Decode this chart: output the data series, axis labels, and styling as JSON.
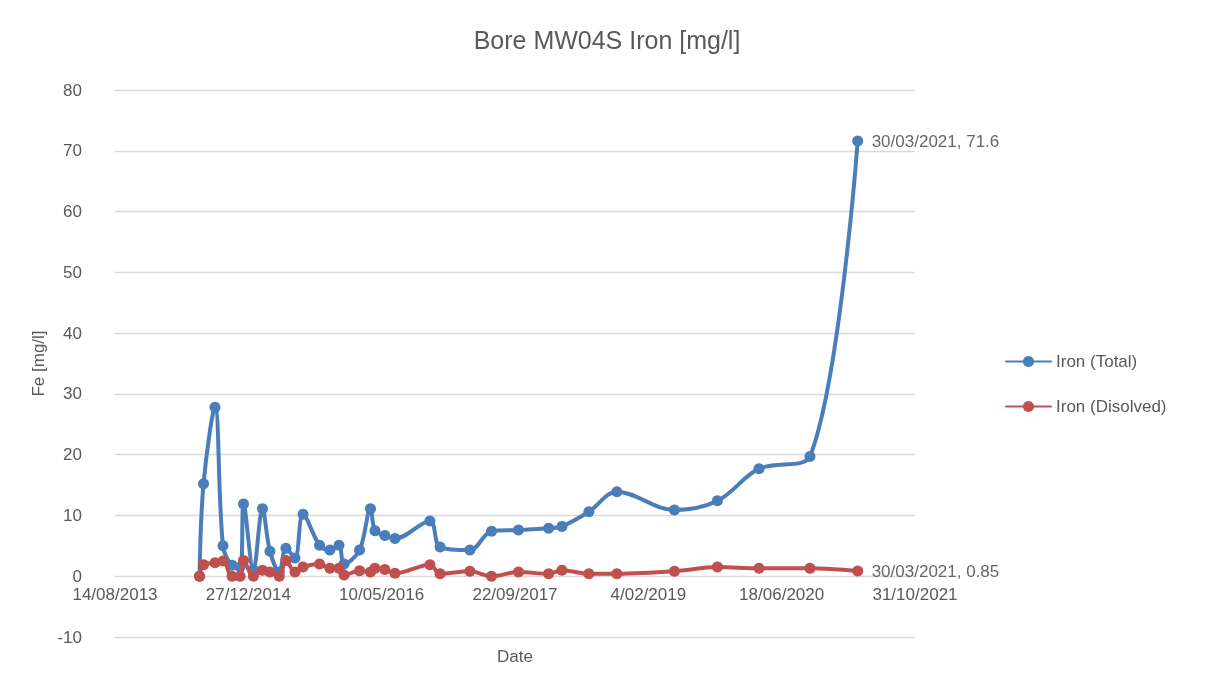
{
  "chart_data": {
    "type": "line",
    "title": "Bore MW04S Iron [mg/l]",
    "xlabel": "Date",
    "ylabel": "Fe [mg/l]",
    "x": [
      "2014-06-27",
      "2014-07-12",
      "2014-08-24",
      "2014-09-23",
      "2014-10-27",
      "2014-11-26",
      "2014-12-09",
      "2015-01-15",
      "2015-02-18",
      "2015-03-18",
      "2015-04-22",
      "2015-05-17",
      "2015-06-20",
      "2015-07-20",
      "2015-09-20",
      "2015-10-29",
      "2015-12-02",
      "2015-12-21",
      "2016-02-17",
      "2016-03-29",
      "2016-04-15",
      "2016-05-22",
      "2016-06-29",
      "2016-11-07",
      "2016-12-15",
      "2017-04-06",
      "2017-06-26",
      "2017-10-05",
      "2018-01-26",
      "2018-03-17",
      "2018-06-26",
      "2018-10-09",
      "2019-05-13",
      "2019-10-21",
      "2020-03-25",
      "2020-10-02",
      "2021-03-30"
    ],
    "series": [
      {
        "name": "Iron (Total)",
        "color": "#4a7ebb",
        "values": [
          0,
          15.2,
          27.8,
          5.0,
          1.8,
          1.5,
          11.9,
          1.0,
          11.1,
          4.1,
          0.7,
          4.6,
          3.0,
          10.2,
          5.1,
          4.3,
          5.1,
          2.0,
          4.3,
          11.1,
          7.5,
          6.7,
          6.2,
          9.1,
          4.8,
          4.3,
          7.4,
          7.6,
          7.9,
          8.2,
          10.6,
          13.9,
          10.9,
          12.4,
          17.7,
          19.7,
          71.6
        ]
      },
      {
        "name": "Iron (Disolved)",
        "color": "#c0504d",
        "values": [
          0,
          1.9,
          2.2,
          2.5,
          0,
          0,
          2.6,
          0,
          1.0,
          0.7,
          0,
          2.6,
          0.7,
          1.5,
          2.0,
          1.3,
          1.3,
          0.2,
          0.9,
          0.7,
          1.3,
          1.1,
          0.5,
          1.9,
          0.4,
          0.8,
          0,
          0.7,
          0.4,
          1.0,
          0.4,
          0.4,
          0.8,
          1.5,
          1.3,
          1.3,
          0.85
        ]
      }
    ],
    "annotations": [
      {
        "text": "30/03/2021, 71.6",
        "x": "2021-03-30",
        "y": 71.6
      },
      {
        "text": "30/03/2021, 0.85",
        "x": "2021-03-30",
        "y": 0.85
      }
    ],
    "xlim": [
      "2013-08-14",
      "2021-10-31"
    ],
    "xticks": [
      {
        "value": "2013-08-14",
        "label": "14/08/2013"
      },
      {
        "value": "2014-12-27",
        "label": "27/12/2014"
      },
      {
        "value": "2016-05-10",
        "label": "10/05/2016"
      },
      {
        "value": "2017-09-22",
        "label": "22/09/2017"
      },
      {
        "value": "2019-02-04",
        "label": "4/02/2019"
      },
      {
        "value": "2020-06-18",
        "label": "18/06/2020"
      },
      {
        "value": "2021-10-31",
        "label": "31/10/2021"
      }
    ],
    "ylim": [
      -10,
      80
    ],
    "yticks": [
      -10,
      0,
      10,
      20,
      30,
      40,
      50,
      60,
      70,
      80
    ],
    "grid": "y",
    "legend": "right",
    "marker": "circle",
    "line_style": "solid"
  }
}
